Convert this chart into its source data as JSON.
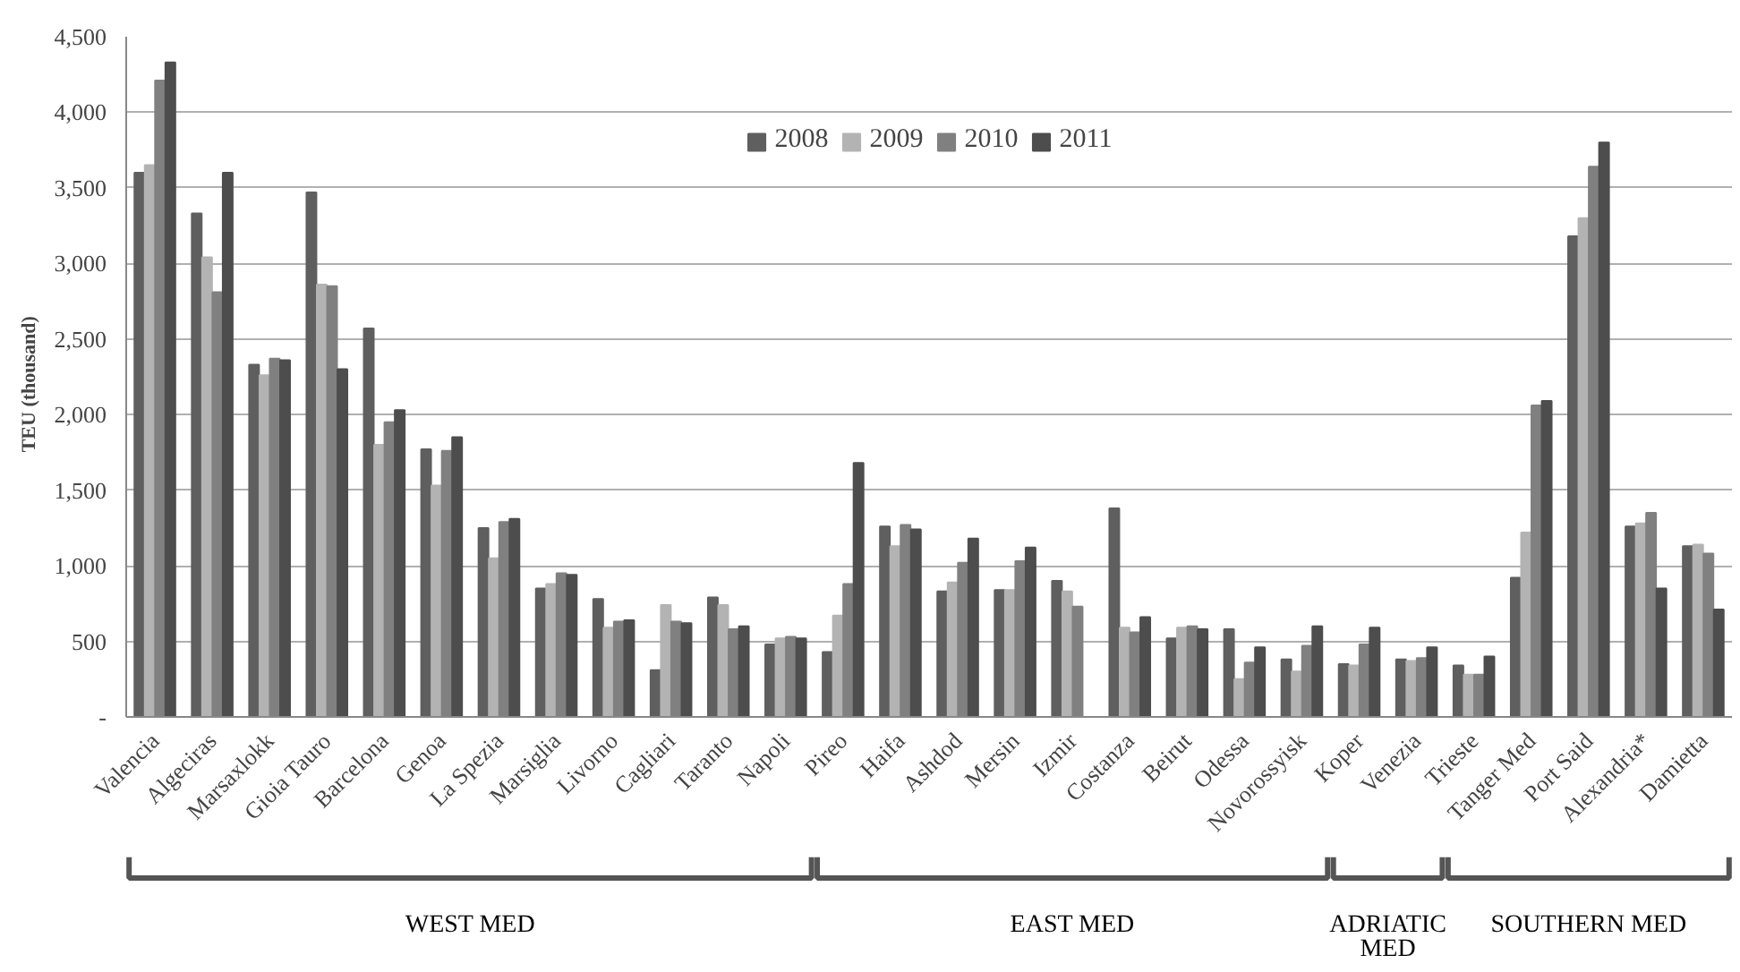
{
  "chart_data": {
    "type": "bar",
    "ylabel": "TEU    (thousand)",
    "categories": [
      "Valencia",
      "Algeciras",
      "Marsaxlokk",
      "Gioia Tauro",
      "Barcelona",
      "Genoa",
      "La Spezia",
      "Marsiglia",
      "Livorno",
      "Cagliari",
      "Taranto",
      "Napoli",
      "Pireo",
      "Haifa",
      "Ashdod",
      "Mersin",
      "Izmir",
      "Costanza",
      "Beirut",
      "Odessa",
      "Novorossyisk",
      "Koper",
      "Venezia",
      "Trieste",
      "Tanger Med",
      "Port Said",
      "Alexandria*",
      "Damietta"
    ],
    "series": [
      {
        "name": "2008",
        "color": "#5f5f5f",
        "values": [
          3600,
          3330,
          2330,
          3470,
          2570,
          1770,
          1250,
          850,
          780,
          310,
          790,
          480,
          430,
          1260,
          830,
          840,
          900,
          1380,
          520,
          580,
          380,
          350,
          380,
          340,
          920,
          3180,
          1260,
          1130
        ]
      },
      {
        "name": "2009",
        "color": "#b3b3b3",
        "values": [
          3650,
          3040,
          2260,
          2860,
          1800,
          1530,
          1050,
          880,
          590,
          740,
          740,
          520,
          670,
          1130,
          890,
          840,
          830,
          590,
          590,
          250,
          300,
          340,
          370,
          280,
          1220,
          3300,
          1280,
          1140
        ]
      },
      {
        "name": "2010",
        "color": "#808080",
        "values": [
          4210,
          2810,
          2370,
          2850,
          1950,
          1760,
          1290,
          950,
          630,
          630,
          580,
          530,
          880,
          1270,
          1020,
          1030,
          730,
          560,
          600,
          360,
          470,
          480,
          390,
          280,
          2060,
          3640,
          1350,
          1080
        ]
      },
      {
        "name": "2011",
        "color": "#4d4d4d",
        "values": [
          4330,
          3600,
          2360,
          2300,
          2030,
          1850,
          1310,
          940,
          640,
          620,
          600,
          520,
          1680,
          1240,
          1180,
          1120,
          null,
          660,
          580,
          460,
          600,
          590,
          460,
          400,
          2090,
          3800,
          850,
          710
        ]
      }
    ],
    "ylim": [
      0,
      4500
    ],
    "yticks": [
      {
        "value": 0,
        "label": "-"
      },
      {
        "value": 500,
        "label": "500"
      },
      {
        "value": 1000,
        "label": "1,000"
      },
      {
        "value": 1500,
        "label": "1,500"
      },
      {
        "value": 2000,
        "label": "2,000"
      },
      {
        "value": 2500,
        "label": "2,500"
      },
      {
        "value": 3000,
        "label": "3,000"
      },
      {
        "value": 3500,
        "label": "3,500"
      },
      {
        "value": 4000,
        "label": "4,000"
      },
      {
        "value": 4500,
        "label": "4,500"
      }
    ],
    "grid": "y",
    "legend": "top",
    "annotations": [
      "WEST MED",
      "EAST MED",
      "ADRIATIC MED",
      "SOUTHERN MED"
    ]
  }
}
